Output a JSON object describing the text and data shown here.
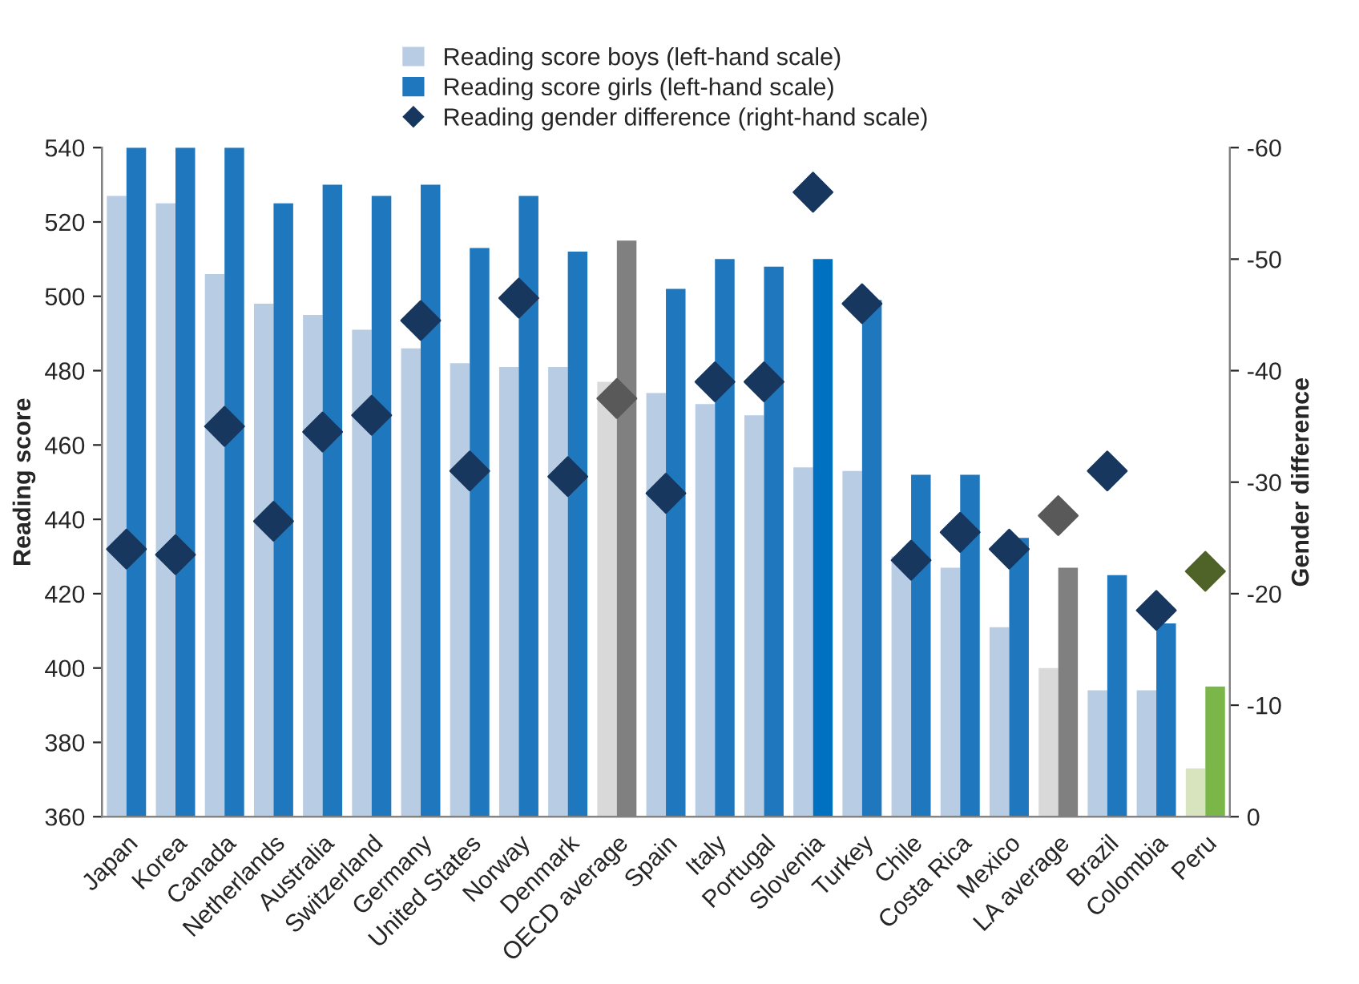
{
  "chart_data": {
    "type": "bar",
    "ylabel": "Reading score",
    "y2label": "Gender difference",
    "categories": [
      "Japan",
      "Korea",
      "Canada",
      "Netherlands",
      "Australia",
      "Switzerland",
      "Germany",
      "United States",
      "Norway",
      "Denmark",
      "OECD average",
      "Spain",
      "Italy",
      "Portugal",
      "Slovenia",
      "Turkey",
      "Chile",
      "Costa Rica",
      "Mexico",
      "LA average",
      "Brazil",
      "Colombia",
      "Peru"
    ],
    "series": [
      {
        "name": "Reading score boys (left-hand scale)",
        "color": "#b8cce4",
        "colors": [
          "#b8cce4",
          "#b8cce4",
          "#b8cce4",
          "#b8cce4",
          "#b8cce4",
          "#b8cce4",
          "#b8cce4",
          "#b8cce4",
          "#b8cce4",
          "#b8cce4",
          "#d9d9d9",
          "#b8cce4",
          "#b8cce4",
          "#b8cce4",
          "#b8cce4",
          "#b8cce4",
          "#b8cce4",
          "#b8cce4",
          "#b8cce4",
          "#d9d9d9",
          "#b8cce4",
          "#b8cce4",
          "#d7e4bd"
        ],
        "values": [
          527,
          525,
          506,
          498,
          495,
          491,
          486,
          482,
          481,
          481,
          477,
          474,
          471,
          468,
          454,
          453,
          430,
          427,
          411,
          400,
          394,
          394,
          373
        ]
      },
      {
        "name": "Reading score girls (left-hand scale)",
        "color": "#1f78be",
        "colors": [
          "#1f78be",
          "#1f78be",
          "#1f78be",
          "#1f78be",
          "#1f78be",
          "#1f78be",
          "#1f78be",
          "#1f78be",
          "#1f78be",
          "#1f78be",
          "#808080",
          "#1f78be",
          "#1f78be",
          "#1f78be",
          "#0070c0",
          "#1f78be",
          "#1f78be",
          "#1f78be",
          "#1f78be",
          "#808080",
          "#1f78be",
          "#1f78be",
          "#7ab648"
        ],
        "values": [
          540,
          540,
          540,
          525,
          530,
          527,
          530,
          513,
          527,
          512,
          515,
          502,
          510,
          508,
          510,
          499,
          452,
          452,
          435,
          427,
          425,
          412,
          395
        ]
      },
      {
        "name": "Reading gender difference (right-hand scale)",
        "type": "scatter",
        "axis": "y2",
        "marker": "diamond",
        "color": "#17375e",
        "colors": [
          "#17375e",
          "#17375e",
          "#17375e",
          "#17375e",
          "#17375e",
          "#17375e",
          "#17375e",
          "#17375e",
          "#17375e",
          "#17375e",
          "#595959",
          "#17375e",
          "#17375e",
          "#17375e",
          "#17375e",
          "#17375e",
          "#17375e",
          "#17375e",
          "#17375e",
          "#595959",
          "#17375e",
          "#17375e",
          "#4f6228"
        ],
        "values": [
          -24,
          -23.5,
          -35,
          -26.5,
          -34.5,
          -36,
          -44.5,
          -31,
          -46.5,
          -30.5,
          -37.5,
          -29,
          -39,
          -39,
          -56,
          -46,
          -23,
          -25.5,
          -24,
          -27,
          -31,
          -18.5,
          -22
        ]
      }
    ],
    "ylim": [
      360,
      540
    ],
    "yticks": [
      360,
      380,
      400,
      420,
      440,
      460,
      480,
      500,
      520,
      540
    ],
    "y2lim": [
      0,
      -60
    ],
    "y2ticks": [
      0,
      -10,
      -20,
      -30,
      -40,
      -50,
      -60
    ],
    "grid": false,
    "legend": "top"
  }
}
